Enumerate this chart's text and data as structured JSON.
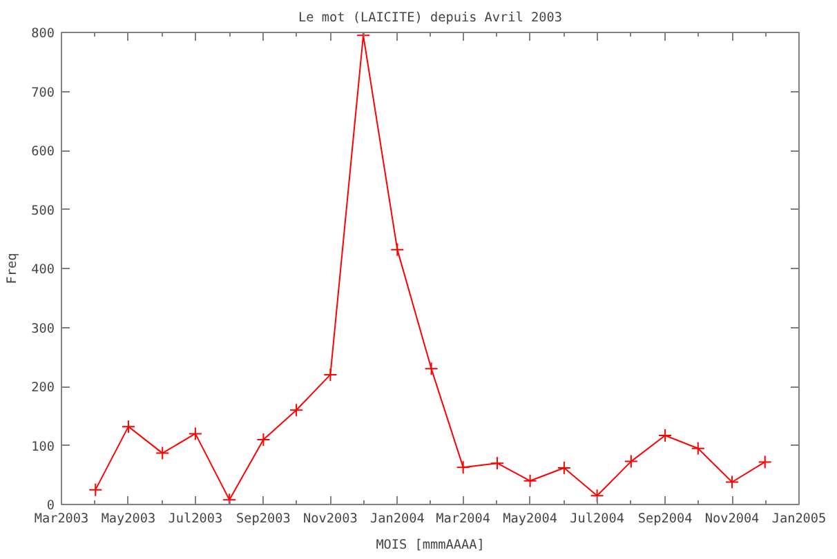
{
  "chart_data": {
    "type": "line",
    "title": "Le mot (LAICITE) depuis Avril 2003",
    "xlabel": "MOIS [mmmAAAA]",
    "ylabel": "Freq",
    "x": [
      "2003-04",
      "2003-05",
      "2003-06",
      "2003-07",
      "2003-08",
      "2003-09",
      "2003-10",
      "2003-11",
      "2003-12",
      "2004-01",
      "2004-02",
      "2004-03",
      "2004-04",
      "2004-05",
      "2004-06",
      "2004-07",
      "2004-08",
      "2004-09",
      "2004-10",
      "2004-11",
      "2004-12"
    ],
    "series": [
      {
        "color": "#ff0000",
        "values": [
          25,
          132,
          87,
          120,
          8,
          110,
          160,
          220,
          795,
          432,
          230,
          63,
          70,
          40,
          62,
          15,
          73,
          117,
          95,
          38,
          72
        ]
      }
    ],
    "xlim": [
      "2003-03",
      "2005-01"
    ],
    "xticks": [
      {
        "value": "2003-03",
        "label": "Mar2003"
      },
      {
        "value": "2003-05",
        "label": "May2003"
      },
      {
        "value": "2003-07",
        "label": "Jul2003"
      },
      {
        "value": "2003-09",
        "label": "Sep2003"
      },
      {
        "value": "2003-11",
        "label": "Nov2003"
      },
      {
        "value": "2004-01",
        "label": "Jan2004"
      },
      {
        "value": "2004-03",
        "label": "Mar2004"
      },
      {
        "value": "2004-05",
        "label": "May2004"
      },
      {
        "value": "2004-07",
        "label": "Jul2004"
      },
      {
        "value": "2004-09",
        "label": "Sep2004"
      },
      {
        "value": "2004-11",
        "label": "Nov2004"
      },
      {
        "value": "2005-01",
        "label": "Jan2005"
      }
    ],
    "ylim": [
      0,
      800
    ],
    "yticks": [
      0,
      100,
      200,
      300,
      400,
      500,
      600,
      700,
      800
    ],
    "marker": "cross",
    "line_style": "solid",
    "grid": false
  }
}
